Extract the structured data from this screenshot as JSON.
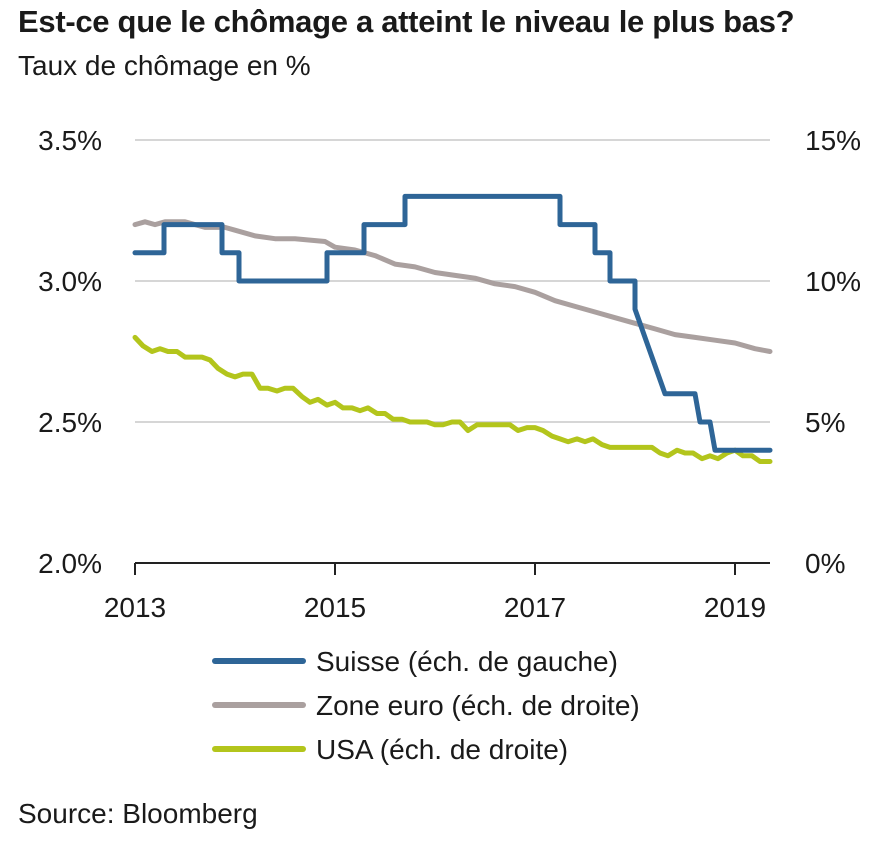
{
  "chart_data": {
    "type": "line",
    "title": "Est-ce que le chômage a atteint le niveau le plus bas?",
    "subtitle": "Taux de chômage en %",
    "source": "Source: Bloomberg",
    "x_ticks": [
      "2013",
      "2015",
      "2017",
      "2019"
    ],
    "xlim": [
      2013.0,
      2019.35
    ],
    "y_left": {
      "ylim": [
        2.0,
        3.5
      ],
      "ticks": [
        "2.0%",
        "2.5%",
        "3.0%",
        "3.5%"
      ]
    },
    "y_right": {
      "ylim": [
        0,
        15
      ],
      "ticks": [
        "0%",
        "5%",
        "10%",
        "15%"
      ]
    },
    "grid": "horizontal",
    "legend_position": "bottom",
    "series": [
      {
        "name": "Suisse (éch. de gauche)",
        "axis": "left",
        "color": "#2e6597",
        "x": [
          2013.0,
          2013.29,
          2013.29,
          2013.87,
          2013.87,
          2014.04,
          2014.04,
          2014.25,
          2014.25,
          2014.92,
          2014.92,
          2015.29,
          2015.29,
          2015.7,
          2015.7,
          2017.25,
          2017.25,
          2017.6,
          2017.6,
          2017.75,
          2017.75,
          2017.83,
          2017.83,
          2018.0,
          2018.0,
          2018.1,
          2018.2,
          2018.2,
          2018.3,
          2018.4,
          2018.4,
          2018.6,
          2018.65,
          2018.65,
          2018.75,
          2018.8,
          2018.8,
          2019.35
        ],
        "y": [
          3.1,
          3.1,
          3.2,
          3.2,
          3.1,
          3.1,
          3.0,
          3.0,
          3.0,
          3.0,
          3.1,
          3.1,
          3.2,
          3.2,
          3.3,
          3.3,
          3.2,
          3.2,
          3.1,
          3.1,
          3.0,
          3.0,
          3.0,
          3.0,
          2.9,
          2.8,
          2.7,
          2.7,
          2.6,
          2.6,
          2.6,
          2.6,
          2.5,
          2.5,
          2.5,
          2.4,
          2.4,
          2.4
        ]
      },
      {
        "name": "Zone euro (éch. de droite)",
        "axis": "right",
        "color": "#aaa09f",
        "x": [
          2013.0,
          2013.1,
          2013.2,
          2013.3,
          2013.5,
          2013.7,
          2013.9,
          2014.0,
          2014.2,
          2014.4,
          2014.6,
          2014.9,
          2015.0,
          2015.2,
          2015.4,
          2015.6,
          2015.8,
          2016.0,
          2016.2,
          2016.4,
          2016.6,
          2016.8,
          2017.0,
          2017.2,
          2017.4,
          2017.6,
          2017.8,
          2018.0,
          2018.2,
          2018.4,
          2018.6,
          2018.8,
          2019.0,
          2019.2,
          2019.35
        ],
        "y": [
          12.0,
          12.1,
          12.0,
          12.1,
          12.1,
          11.9,
          11.9,
          11.8,
          11.6,
          11.5,
          11.5,
          11.4,
          11.2,
          11.1,
          10.9,
          10.6,
          10.5,
          10.3,
          10.2,
          10.1,
          9.9,
          9.8,
          9.6,
          9.3,
          9.1,
          8.9,
          8.7,
          8.5,
          8.3,
          8.1,
          8.0,
          7.9,
          7.8,
          7.6,
          7.5
        ]
      },
      {
        "name": "USA (éch. de droite)",
        "axis": "right",
        "color": "#b3c51c",
        "x": [
          2013.0,
          2013.08,
          2013.17,
          2013.25,
          2013.33,
          2013.42,
          2013.5,
          2013.58,
          2013.67,
          2013.75,
          2013.83,
          2013.92,
          2014.0,
          2014.08,
          2014.17,
          2014.25,
          2014.33,
          2014.42,
          2014.5,
          2014.58,
          2014.67,
          2014.75,
          2014.83,
          2014.92,
          2015.0,
          2015.08,
          2015.17,
          2015.25,
          2015.33,
          2015.42,
          2015.5,
          2015.58,
          2015.67,
          2015.75,
          2015.83,
          2015.92,
          2016.0,
          2016.08,
          2016.17,
          2016.25,
          2016.33,
          2016.42,
          2016.5,
          2016.58,
          2016.67,
          2016.75,
          2016.83,
          2016.92,
          2017.0,
          2017.08,
          2017.17,
          2017.25,
          2017.33,
          2017.42,
          2017.5,
          2017.58,
          2017.67,
          2017.75,
          2017.83,
          2017.92,
          2018.0,
          2018.08,
          2018.17,
          2018.25,
          2018.33,
          2018.42,
          2018.5,
          2018.58,
          2018.67,
          2018.75,
          2018.83,
          2018.92,
          2019.0,
          2019.08,
          2019.17,
          2019.25,
          2019.35
        ],
        "y": [
          8.0,
          7.7,
          7.5,
          7.6,
          7.5,
          7.5,
          7.3,
          7.3,
          7.3,
          7.2,
          6.9,
          6.7,
          6.6,
          6.7,
          6.7,
          6.2,
          6.2,
          6.1,
          6.2,
          6.2,
          5.9,
          5.7,
          5.8,
          5.6,
          5.7,
          5.5,
          5.5,
          5.4,
          5.5,
          5.3,
          5.3,
          5.1,
          5.1,
          5.0,
          5.0,
          5.0,
          4.9,
          4.9,
          5.0,
          5.0,
          4.7,
          4.9,
          4.9,
          4.9,
          4.9,
          4.9,
          4.7,
          4.8,
          4.8,
          4.7,
          4.5,
          4.4,
          4.3,
          4.4,
          4.3,
          4.4,
          4.2,
          4.1,
          4.1,
          4.1,
          4.1,
          4.1,
          4.1,
          3.9,
          3.8,
          4.0,
          3.9,
          3.9,
          3.7,
          3.8,
          3.7,
          3.9,
          4.0,
          3.8,
          3.8,
          3.6,
          3.6
        ]
      }
    ]
  }
}
